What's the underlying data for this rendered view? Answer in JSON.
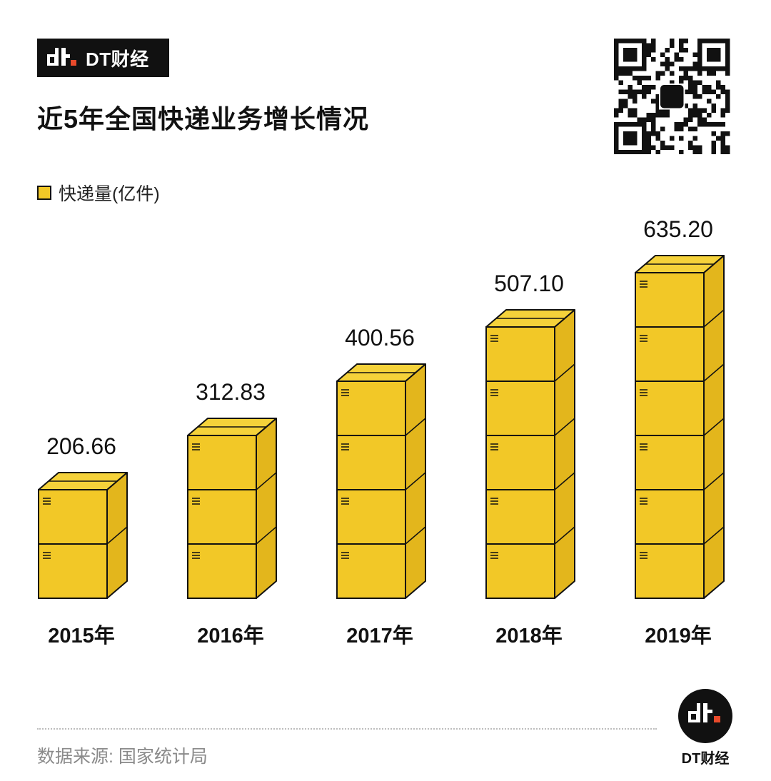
{
  "brand": {
    "name": "DT财经"
  },
  "header": {
    "title": "近5年全国快递业务增长情况"
  },
  "legend": {
    "label": "快递量(亿件)"
  },
  "source": {
    "text": "数据来源: 国家统计局"
  },
  "footer_logo": {
    "name": "DT财经"
  },
  "colors": {
    "box_front": "#f2c827",
    "box_side": "#e3b61c",
    "box_top": "#f5d23a",
    "outline": "#111111"
  },
  "chart_data": {
    "type": "bar",
    "title": "近5年全国快递业务增长情况",
    "categories": [
      "2015年",
      "2016年",
      "2017年",
      "2018年",
      "2019年"
    ],
    "series": [
      {
        "name": "快递量(亿件)",
        "values": [
          206.66,
          312.83,
          400.56,
          507.1,
          635.2
        ]
      }
    ],
    "data_labels": [
      "206.66",
      "312.83",
      "400.56",
      "507.10",
      "635.20"
    ],
    "boxes_per_bar": [
      2,
      3,
      4,
      5,
      6
    ],
    "xlabel": "",
    "ylabel": "",
    "grid": false,
    "legend_position": "top-left"
  }
}
